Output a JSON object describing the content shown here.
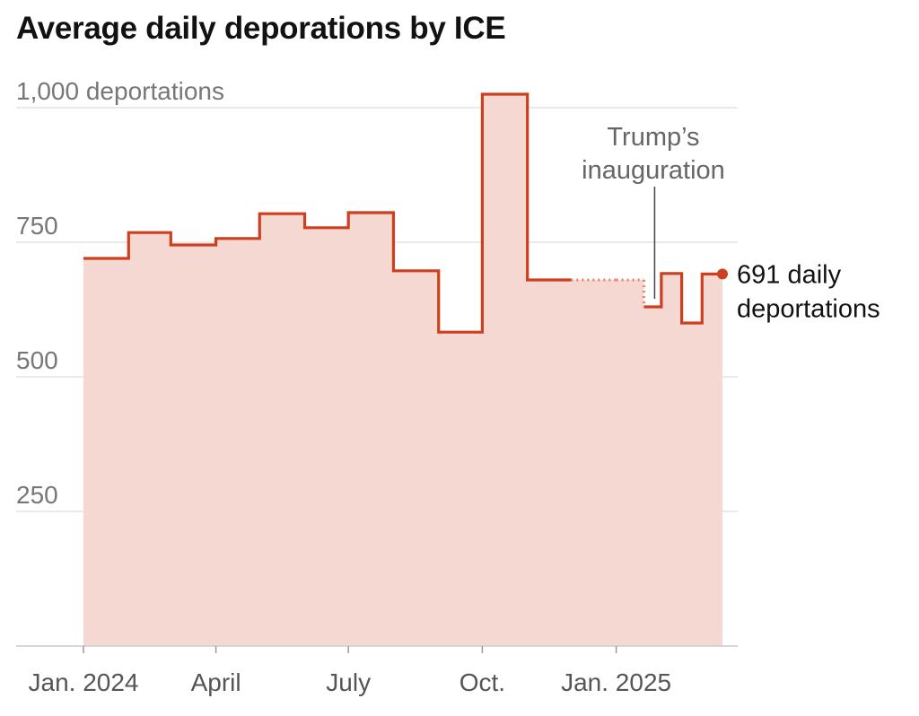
{
  "chart_data": {
    "type": "area",
    "title": "Average daily deporations by ICE",
    "ylim": [
      0,
      1000
    ],
    "y_ticks": [
      {
        "value": 1000,
        "label": "1,000 deportations"
      },
      {
        "value": 750,
        "label": "750"
      },
      {
        "value": 500,
        "label": "500"
      },
      {
        "value": 250,
        "label": "250"
      }
    ],
    "x_ticks": [
      {
        "date": "2024-01-01",
        "label": "Jan. 2024"
      },
      {
        "date": "2024-04-01",
        "label": "April"
      },
      {
        "date": "2024-07-01",
        "label": "July"
      },
      {
        "date": "2024-10-01",
        "label": "Oct."
      },
      {
        "date": "2025-01-01",
        "label": "Jan. 2025"
      }
    ],
    "x_range": [
      "2024-01-01",
      "2025-03-15"
    ],
    "series": [
      {
        "step": "post",
        "points": [
          {
            "x": "2024-01-01",
            "y": 720
          },
          {
            "x": "2024-02-01",
            "y": 768
          },
          {
            "x": "2024-03-01",
            "y": 745
          },
          {
            "x": "2024-04-01",
            "y": 757
          },
          {
            "x": "2024-05-01",
            "y": 803
          },
          {
            "x": "2024-06-01",
            "y": 777
          },
          {
            "x": "2024-07-01",
            "y": 805
          },
          {
            "x": "2024-08-01",
            "y": 697
          },
          {
            "x": "2024-09-01",
            "y": 583
          },
          {
            "x": "2024-10-01",
            "y": 1025
          },
          {
            "x": "2024-11-01",
            "y": 680
          },
          {
            "x": "2024-12-01",
            "y": 680
          },
          {
            "x": "2025-01-01",
            "y": 680
          },
          {
            "x": "2025-01-20",
            "y": 630
          },
          {
            "x": "2025-02-01",
            "y": 692
          },
          {
            "x": "2025-02-15",
            "y": 600
          },
          {
            "x": "2025-03-01",
            "y": 691
          }
        ],
        "dotted_between": [
          "2024-12-01",
          "2025-01-20"
        ],
        "end": {
          "x": "2025-03-15",
          "y": 691
        }
      }
    ],
    "annotations": [
      {
        "date": "2025-01-20",
        "lines": [
          "Trump’s",
          "inauguration"
        ]
      }
    ],
    "end_label": [
      "691 daily",
      "deportations"
    ],
    "grid": true,
    "colors": {
      "line": "#cc3f1f",
      "fill": "#f5d8d2",
      "dotted": "#e8806c",
      "grid": "#dddddd",
      "axis": "#cccccc"
    }
  }
}
